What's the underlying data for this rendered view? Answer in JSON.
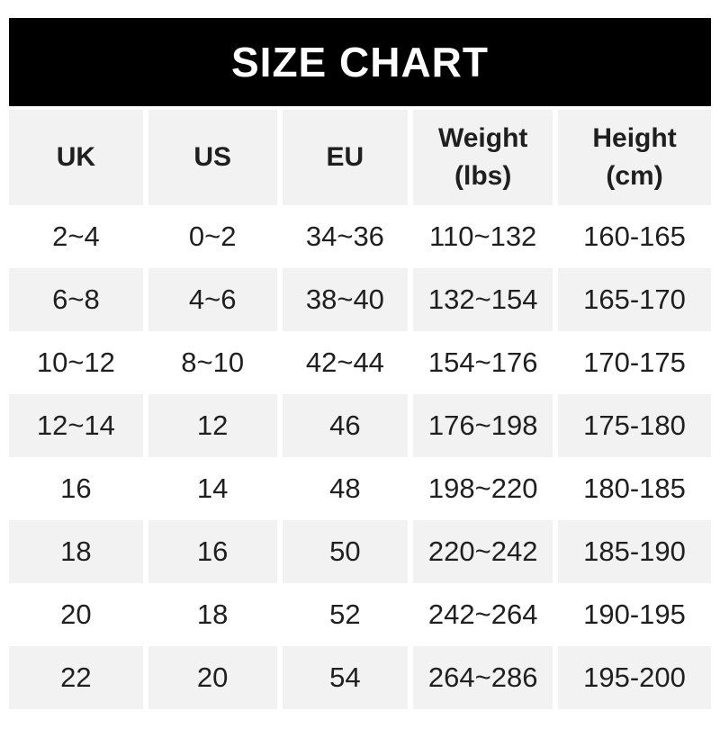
{
  "title": "SIZE CHART",
  "colors": {
    "banner_bg": "#000000",
    "banner_text": "#ffffff",
    "row_alt_bg": "#f2f2f2",
    "row_bg": "#ffffff",
    "text": "#1f1f1f"
  },
  "table": {
    "headers": [
      {
        "lines": [
          "UK"
        ]
      },
      {
        "lines": [
          "US"
        ]
      },
      {
        "lines": [
          "EU"
        ]
      },
      {
        "lines": [
          "Weight",
          "(lbs)"
        ]
      },
      {
        "lines": [
          "Height",
          "(cm)"
        ]
      }
    ]
  },
  "chart_data": {
    "type": "table",
    "title": "SIZE CHART",
    "columns": [
      "UK",
      "US",
      "EU",
      "Weight (lbs)",
      "Height (cm)"
    ],
    "rows": [
      [
        "2~4",
        "0~2",
        "34~36",
        "110~132",
        "160-165"
      ],
      [
        "6~8",
        "4~6",
        "38~40",
        "132~154",
        "165-170"
      ],
      [
        "10~12",
        "8~10",
        "42~44",
        "154~176",
        "170-175"
      ],
      [
        "12~14",
        "12",
        "46",
        "176~198",
        "175-180"
      ],
      [
        "16",
        "14",
        "48",
        "198~220",
        "180-185"
      ],
      [
        "18",
        "16",
        "50",
        "220~242",
        "185-190"
      ],
      [
        "20",
        "18",
        "52",
        "242~264",
        "190-195"
      ],
      [
        "22",
        "20",
        "54",
        "264~286",
        "195-200"
      ]
    ],
    "layout": {
      "header_background": "#f2f2f2",
      "alternating_row_background": "#f2f2f2",
      "banner_background": "#000000"
    }
  }
}
